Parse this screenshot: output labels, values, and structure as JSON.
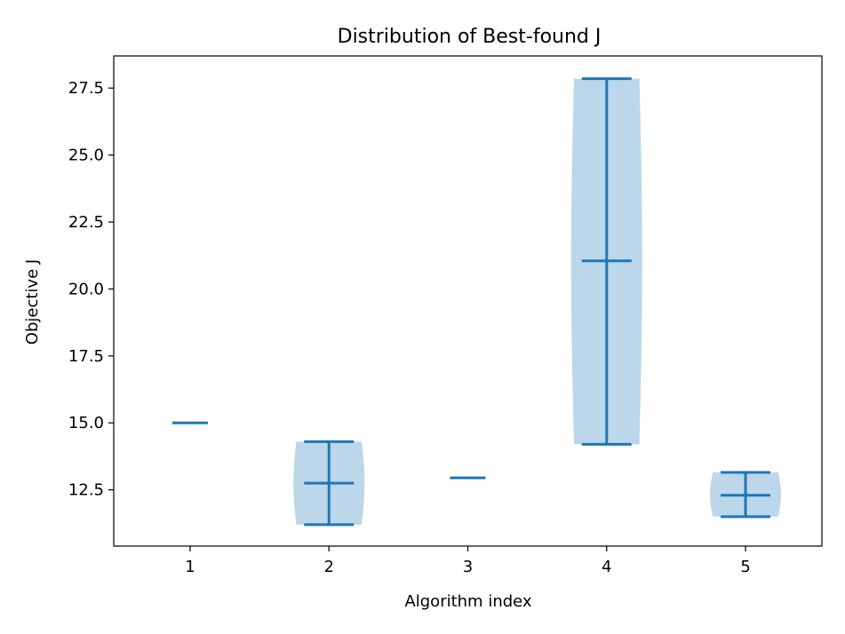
{
  "chart_data": {
    "type": "violin",
    "title": "Distribution of Best-found J",
    "xlabel": "Algorithm index",
    "ylabel": "Objective J",
    "categories": [
      "1",
      "2",
      "3",
      "4",
      "5"
    ],
    "xlim": [
      0.45,
      5.55
    ],
    "ylim": [
      10.4,
      28.7
    ],
    "y_ticks": [
      "12.5",
      "15.0",
      "17.5",
      "20.0",
      "22.5",
      "25.0",
      "27.5"
    ],
    "x_ticks": [
      "1",
      "2",
      "3",
      "4",
      "5"
    ],
    "grid": false,
    "colors": {
      "line": "#1f77b4",
      "body": "#bcd6ea"
    },
    "violins": [
      {
        "x": 1,
        "min": 15.0,
        "max": 15.0,
        "mean": 15.0
      },
      {
        "x": 2,
        "min": 11.2,
        "max": 14.3,
        "mean": 12.75
      },
      {
        "x": 3,
        "min": 12.95,
        "max": 12.95,
        "mean": 12.95
      },
      {
        "x": 4,
        "min": 14.2,
        "max": 27.85,
        "mean": 21.05
      },
      {
        "x": 5,
        "min": 11.5,
        "max": 13.15,
        "mean": 12.3
      }
    ]
  }
}
